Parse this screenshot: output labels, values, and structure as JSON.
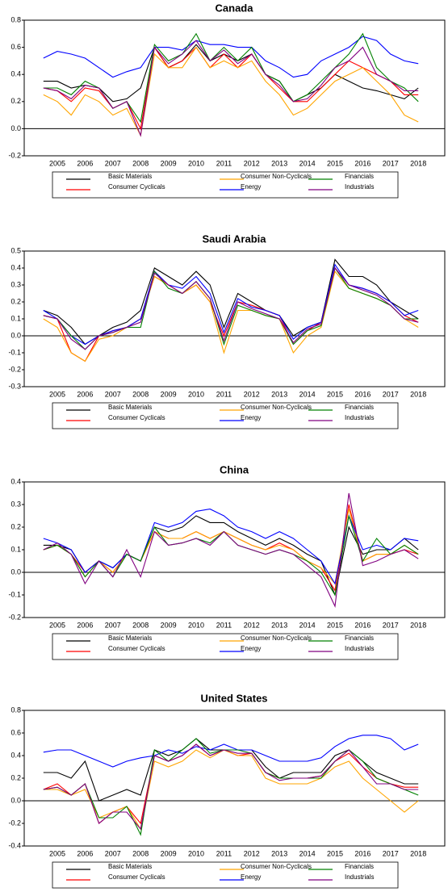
{
  "chart_data": [
    {
      "type": "line",
      "title": "Canada",
      "categories": [
        null,
        "2005",
        null,
        "2006",
        null,
        "2007",
        null,
        "2008",
        null,
        "2009",
        null,
        "2010",
        null,
        "2011",
        null,
        "2012",
        null,
        "2013",
        null,
        "2014",
        null,
        "2015",
        null,
        "2016",
        null,
        "2017",
        null,
        "2018"
      ],
      "ylim": [
        -0.2,
        0.8
      ],
      "yticks": [
        -0.2,
        {
          "value": 0,
          "label": "0.0"
        },
        0.2,
        0.4,
        0.6,
        0.8
      ],
      "series": [
        {
          "name": "Basic Materials",
          "color": "#000000",
          "values": [
            0.35,
            0.35,
            0.3,
            0.32,
            0.3,
            0.2,
            0.22,
            0.3,
            0.6,
            0.45,
            0.5,
            0.62,
            0.5,
            0.55,
            0.5,
            0.55,
            0.4,
            0.35,
            0.2,
            0.25,
            0.3,
            0.4,
            0.35,
            0.3,
            0.28,
            0.25,
            0.22,
            0.3
          ]
        },
        {
          "name": "Consumer Cyclicals",
          "color": "#ff0000",
          "values": [
            0.3,
            0.28,
            0.2,
            0.3,
            0.28,
            0.15,
            0.2,
            0.0,
            0.6,
            0.45,
            0.5,
            0.6,
            0.45,
            0.55,
            0.45,
            0.55,
            0.4,
            0.3,
            0.2,
            0.2,
            0.3,
            0.4,
            0.5,
            0.45,
            0.4,
            0.35,
            0.25,
            0.25
          ]
        },
        {
          "name": "Consumer Non-Cyclicals",
          "color": "#ffa500",
          "values": [
            0.25,
            0.2,
            0.1,
            0.25,
            0.2,
            0.1,
            0.15,
            -0.05,
            0.55,
            0.45,
            0.45,
            0.6,
            0.45,
            0.5,
            0.45,
            0.5,
            0.35,
            0.25,
            0.1,
            0.15,
            0.25,
            0.35,
            0.4,
            0.45,
            0.35,
            0.25,
            0.1,
            0.05
          ]
        },
        {
          "name": "Energy",
          "color": "#0000ff",
          "values": [
            0.52,
            0.57,
            0.55,
            0.52,
            0.45,
            0.38,
            0.42,
            0.45,
            0.6,
            0.6,
            0.58,
            0.65,
            0.62,
            0.62,
            0.6,
            0.6,
            0.5,
            0.45,
            0.38,
            0.4,
            0.5,
            0.55,
            0.6,
            0.68,
            0.65,
            0.55,
            0.5,
            0.48
          ]
        },
        {
          "name": "Financials",
          "color": "#008000",
          "values": [
            0.3,
            0.3,
            0.25,
            0.35,
            0.3,
            0.15,
            0.2,
            0.05,
            0.62,
            0.5,
            0.55,
            0.7,
            0.5,
            0.6,
            0.5,
            0.6,
            0.4,
            0.35,
            0.2,
            0.25,
            0.35,
            0.45,
            0.55,
            0.7,
            0.45,
            0.35,
            0.3,
            0.2
          ]
        },
        {
          "name": "Industrials",
          "color": "#800080",
          "values": [
            0.3,
            0.28,
            0.22,
            0.32,
            0.3,
            0.15,
            0.2,
            -0.05,
            0.6,
            0.48,
            0.55,
            0.65,
            0.5,
            0.58,
            0.48,
            0.55,
            0.4,
            0.32,
            0.2,
            0.22,
            0.32,
            0.45,
            0.5,
            0.6,
            0.4,
            0.35,
            0.28,
            0.28
          ]
        }
      ]
    },
    {
      "type": "line",
      "title": "Saudi Arabia",
      "categories": [
        null,
        "2005",
        null,
        "2006",
        null,
        "2007",
        null,
        "2008",
        null,
        "2009",
        null,
        "2010",
        null,
        "2011",
        null,
        "2012",
        null,
        "2013",
        null,
        "2014",
        null,
        "2015",
        null,
        "2016",
        null,
        "2017",
        null,
        "2018"
      ],
      "ylim": [
        -0.3,
        0.5
      ],
      "yticks": [
        -0.3,
        -0.2,
        -0.1,
        {
          "value": 0,
          "label": "0.0"
        },
        0.1,
        0.2,
        0.3,
        0.4,
        0.5
      ],
      "series": [
        {
          "name": "Basic Materials",
          "color": "#000000",
          "values": [
            0.15,
            0.12,
            0.05,
            -0.05,
            0.0,
            0.05,
            0.08,
            0.15,
            0.4,
            0.35,
            0.3,
            0.38,
            0.3,
            0.05,
            0.25,
            0.2,
            0.15,
            0.12,
            0.0,
            0.05,
            0.08,
            0.45,
            0.35,
            0.35,
            0.3,
            0.2,
            0.15,
            0.1
          ]
        },
        {
          "name": "Consumer Cyclicals",
          "color": "#ff0000",
          "values": [
            0.12,
            0.1,
            -0.1,
            -0.15,
            0.0,
            0.03,
            0.05,
            0.1,
            0.35,
            0.3,
            0.25,
            0.3,
            0.2,
            0.0,
            0.2,
            0.18,
            0.15,
            0.12,
            -0.05,
            0.03,
            0.08,
            0.4,
            0.3,
            0.28,
            0.25,
            0.2,
            0.12,
            0.08
          ]
        },
        {
          "name": "Consumer Non-Cyclicals",
          "color": "#ffa500",
          "values": [
            0.1,
            0.05,
            -0.1,
            -0.15,
            -0.02,
            0.0,
            0.05,
            0.1,
            0.35,
            0.3,
            0.25,
            0.3,
            0.2,
            -0.1,
            0.15,
            0.15,
            0.12,
            0.1,
            -0.1,
            0.0,
            0.05,
            0.38,
            0.28,
            0.25,
            0.22,
            0.18,
            0.1,
            0.05
          ]
        },
        {
          "name": "Energy",
          "color": "#0000ff",
          "values": [
            0.15,
            0.1,
            0.0,
            -0.05,
            0.0,
            0.03,
            0.05,
            0.1,
            0.38,
            0.3,
            0.28,
            0.35,
            0.25,
            0.02,
            0.22,
            0.17,
            0.15,
            0.12,
            -0.02,
            0.05,
            0.08,
            0.42,
            0.3,
            0.28,
            0.25,
            0.2,
            0.12,
            0.15
          ]
        },
        {
          "name": "Financials",
          "color": "#008000",
          "values": [
            0.12,
            0.1,
            0.0,
            -0.08,
            0.0,
            0.02,
            0.05,
            0.05,
            0.38,
            0.28,
            0.25,
            0.32,
            0.22,
            -0.05,
            0.18,
            0.15,
            0.12,
            0.1,
            -0.05,
            0.03,
            0.06,
            0.4,
            0.28,
            0.25,
            0.22,
            0.18,
            0.1,
            0.1
          ]
        },
        {
          "name": "Industrials",
          "color": "#800080",
          "values": [
            0.12,
            0.1,
            -0.02,
            -0.08,
            0.0,
            0.02,
            0.05,
            0.08,
            0.37,
            0.3,
            0.25,
            0.32,
            0.22,
            -0.03,
            0.2,
            0.16,
            0.13,
            0.1,
            -0.04,
            0.04,
            0.07,
            0.4,
            0.3,
            0.27,
            0.24,
            0.18,
            0.1,
            0.08
          ]
        }
      ]
    },
    {
      "type": "line",
      "title": "China",
      "categories": [
        null,
        "2005",
        null,
        "2006",
        null,
        "2007",
        null,
        "2008",
        null,
        "2009",
        null,
        "2010",
        null,
        "2011",
        null,
        "2012",
        null,
        "2013",
        null,
        "2014",
        null,
        "2015",
        null,
        "2016",
        null,
        "2017",
        null,
        "2018"
      ],
      "ylim": [
        -0.2,
        0.4
      ],
      "yticks": [
        -0.2,
        -0.1,
        {
          "value": 0,
          "label": "0.0"
        },
        0.1,
        0.2,
        0.3,
        0.4
      ],
      "series": [
        {
          "name": "Basic Materials",
          "color": "#000000",
          "values": [
            0.12,
            0.12,
            0.1,
            0.0,
            0.05,
            0.02,
            0.08,
            0.05,
            0.2,
            0.18,
            0.2,
            0.25,
            0.22,
            0.22,
            0.18,
            0.15,
            0.12,
            0.15,
            0.12,
            0.08,
            0.05,
            -0.1,
            0.2,
            0.08,
            0.1,
            0.1,
            0.15,
            0.1
          ]
        },
        {
          "name": "Consumer Cyclicals",
          "color": "#ff0000",
          "values": [
            0.1,
            0.12,
            0.08,
            0.0,
            0.05,
            0.0,
            0.08,
            0.05,
            0.18,
            0.15,
            0.15,
            0.18,
            0.15,
            0.18,
            0.15,
            0.12,
            0.1,
            0.13,
            0.1,
            0.05,
            0.02,
            -0.08,
            0.3,
            0.05,
            0.08,
            0.08,
            0.1,
            0.08
          ]
        },
        {
          "name": "Consumer Non-Cyclicals",
          "color": "#ffa500",
          "values": [
            0.1,
            0.12,
            0.08,
            -0.02,
            0.05,
            0.0,
            0.08,
            0.05,
            0.18,
            0.15,
            0.15,
            0.18,
            0.15,
            0.18,
            0.15,
            0.12,
            0.1,
            0.12,
            0.1,
            0.05,
            0.02,
            -0.05,
            0.28,
            0.05,
            0.08,
            0.08,
            0.12,
            0.08
          ]
        },
        {
          "name": "Energy",
          "color": "#0000ff",
          "values": [
            0.15,
            0.13,
            0.1,
            0.0,
            0.05,
            0.02,
            0.08,
            0.05,
            0.22,
            0.2,
            0.22,
            0.27,
            0.28,
            0.25,
            0.2,
            0.18,
            0.15,
            0.18,
            0.15,
            0.1,
            0.05,
            -0.05,
            0.25,
            0.1,
            0.12,
            0.1,
            0.15,
            0.14
          ]
        },
        {
          "name": "Financials",
          "color": "#008000",
          "values": [
            0.1,
            0.12,
            0.08,
            -0.02,
            0.05,
            -0.02,
            0.08,
            0.05,
            0.2,
            0.12,
            0.13,
            0.15,
            0.13,
            0.18,
            0.12,
            0.1,
            0.08,
            0.1,
            0.08,
            0.05,
            0.0,
            -0.1,
            0.25,
            0.05,
            0.15,
            0.08,
            0.12,
            0.08
          ]
        },
        {
          "name": "Industrials",
          "color": "#800080",
          "values": [
            0.1,
            0.13,
            0.08,
            -0.05,
            0.05,
            -0.02,
            0.1,
            -0.02,
            0.18,
            0.12,
            0.13,
            0.15,
            0.12,
            0.18,
            0.12,
            0.1,
            0.08,
            0.1,
            0.08,
            0.03,
            -0.02,
            -0.15,
            0.35,
            0.03,
            0.05,
            0.08,
            0.1,
            0.06
          ]
        }
      ]
    },
    {
      "type": "line",
      "title": "United States",
      "categories": [
        null,
        "2005",
        null,
        "2006",
        null,
        "2007",
        null,
        "2008",
        null,
        "2009",
        null,
        "2010",
        null,
        "2011",
        null,
        "2012",
        null,
        "2013",
        null,
        "2014",
        null,
        "2015",
        null,
        "2016",
        null,
        "2017",
        null,
        "2018"
      ],
      "ylim": [
        -0.4,
        0.8
      ],
      "yticks": [
        -0.4,
        -0.2,
        {
          "value": 0,
          "label": "0.0"
        },
        0.2,
        0.4,
        0.6,
        0.8
      ],
      "series": [
        {
          "name": "Basic Materials",
          "color": "#000000",
          "values": [
            0.25,
            0.25,
            0.2,
            0.35,
            0.0,
            0.05,
            0.1,
            0.05,
            0.45,
            0.4,
            0.45,
            0.55,
            0.45,
            0.45,
            0.45,
            0.45,
            0.3,
            0.2,
            0.25,
            0.25,
            0.25,
            0.4,
            0.45,
            0.35,
            0.25,
            0.2,
            0.15,
            0.15
          ]
        },
        {
          "name": "Consumer Cyclicals",
          "color": "#ff0000",
          "values": [
            0.1,
            0.15,
            0.05,
            0.15,
            -0.2,
            -0.1,
            -0.05,
            -0.2,
            0.4,
            0.35,
            0.4,
            0.5,
            0.4,
            0.45,
            0.4,
            0.42,
            0.25,
            0.2,
            0.2,
            0.2,
            0.22,
            0.35,
            0.42,
            0.3,
            0.2,
            0.15,
            0.12,
            0.12
          ]
        },
        {
          "name": "Consumer Non-Cyclicals",
          "color": "#ffa500",
          "values": [
            0.1,
            0.1,
            0.05,
            0.1,
            -0.15,
            -0.1,
            -0.05,
            -0.25,
            0.35,
            0.3,
            0.35,
            0.45,
            0.38,
            0.45,
            0.4,
            0.4,
            0.2,
            0.15,
            0.15,
            0.15,
            0.2,
            0.3,
            0.35,
            0.2,
            0.1,
            0.0,
            -0.1,
            0.0
          ]
        },
        {
          "name": "Energy",
          "color": "#0000ff",
          "values": [
            0.43,
            0.45,
            0.45,
            0.4,
            0.35,
            0.3,
            0.35,
            0.38,
            0.4,
            0.45,
            0.42,
            0.48,
            0.45,
            0.5,
            0.45,
            0.45,
            0.4,
            0.35,
            0.35,
            0.35,
            0.38,
            0.48,
            0.55,
            0.58,
            0.58,
            0.55,
            0.45,
            0.5
          ]
        },
        {
          "name": "Financials",
          "color": "#008000",
          "values": [
            0.1,
            0.12,
            0.05,
            0.15,
            -0.15,
            -0.15,
            -0.05,
            -0.3,
            0.45,
            0.35,
            0.45,
            0.55,
            0.42,
            0.45,
            0.45,
            0.42,
            0.25,
            0.2,
            0.2,
            0.2,
            0.2,
            0.35,
            0.45,
            0.35,
            0.2,
            0.15,
            0.1,
            0.05
          ]
        },
        {
          "name": "Industrials",
          "color": "#800080",
          "values": [
            0.1,
            0.12,
            0.05,
            0.15,
            -0.2,
            -0.1,
            -0.1,
            -0.25,
            0.4,
            0.35,
            0.4,
            0.5,
            0.4,
            0.45,
            0.42,
            0.42,
            0.25,
            0.18,
            0.2,
            0.2,
            0.22,
            0.35,
            0.45,
            0.3,
            0.15,
            0.15,
            0.1,
            0.1
          ]
        }
      ]
    }
  ]
}
